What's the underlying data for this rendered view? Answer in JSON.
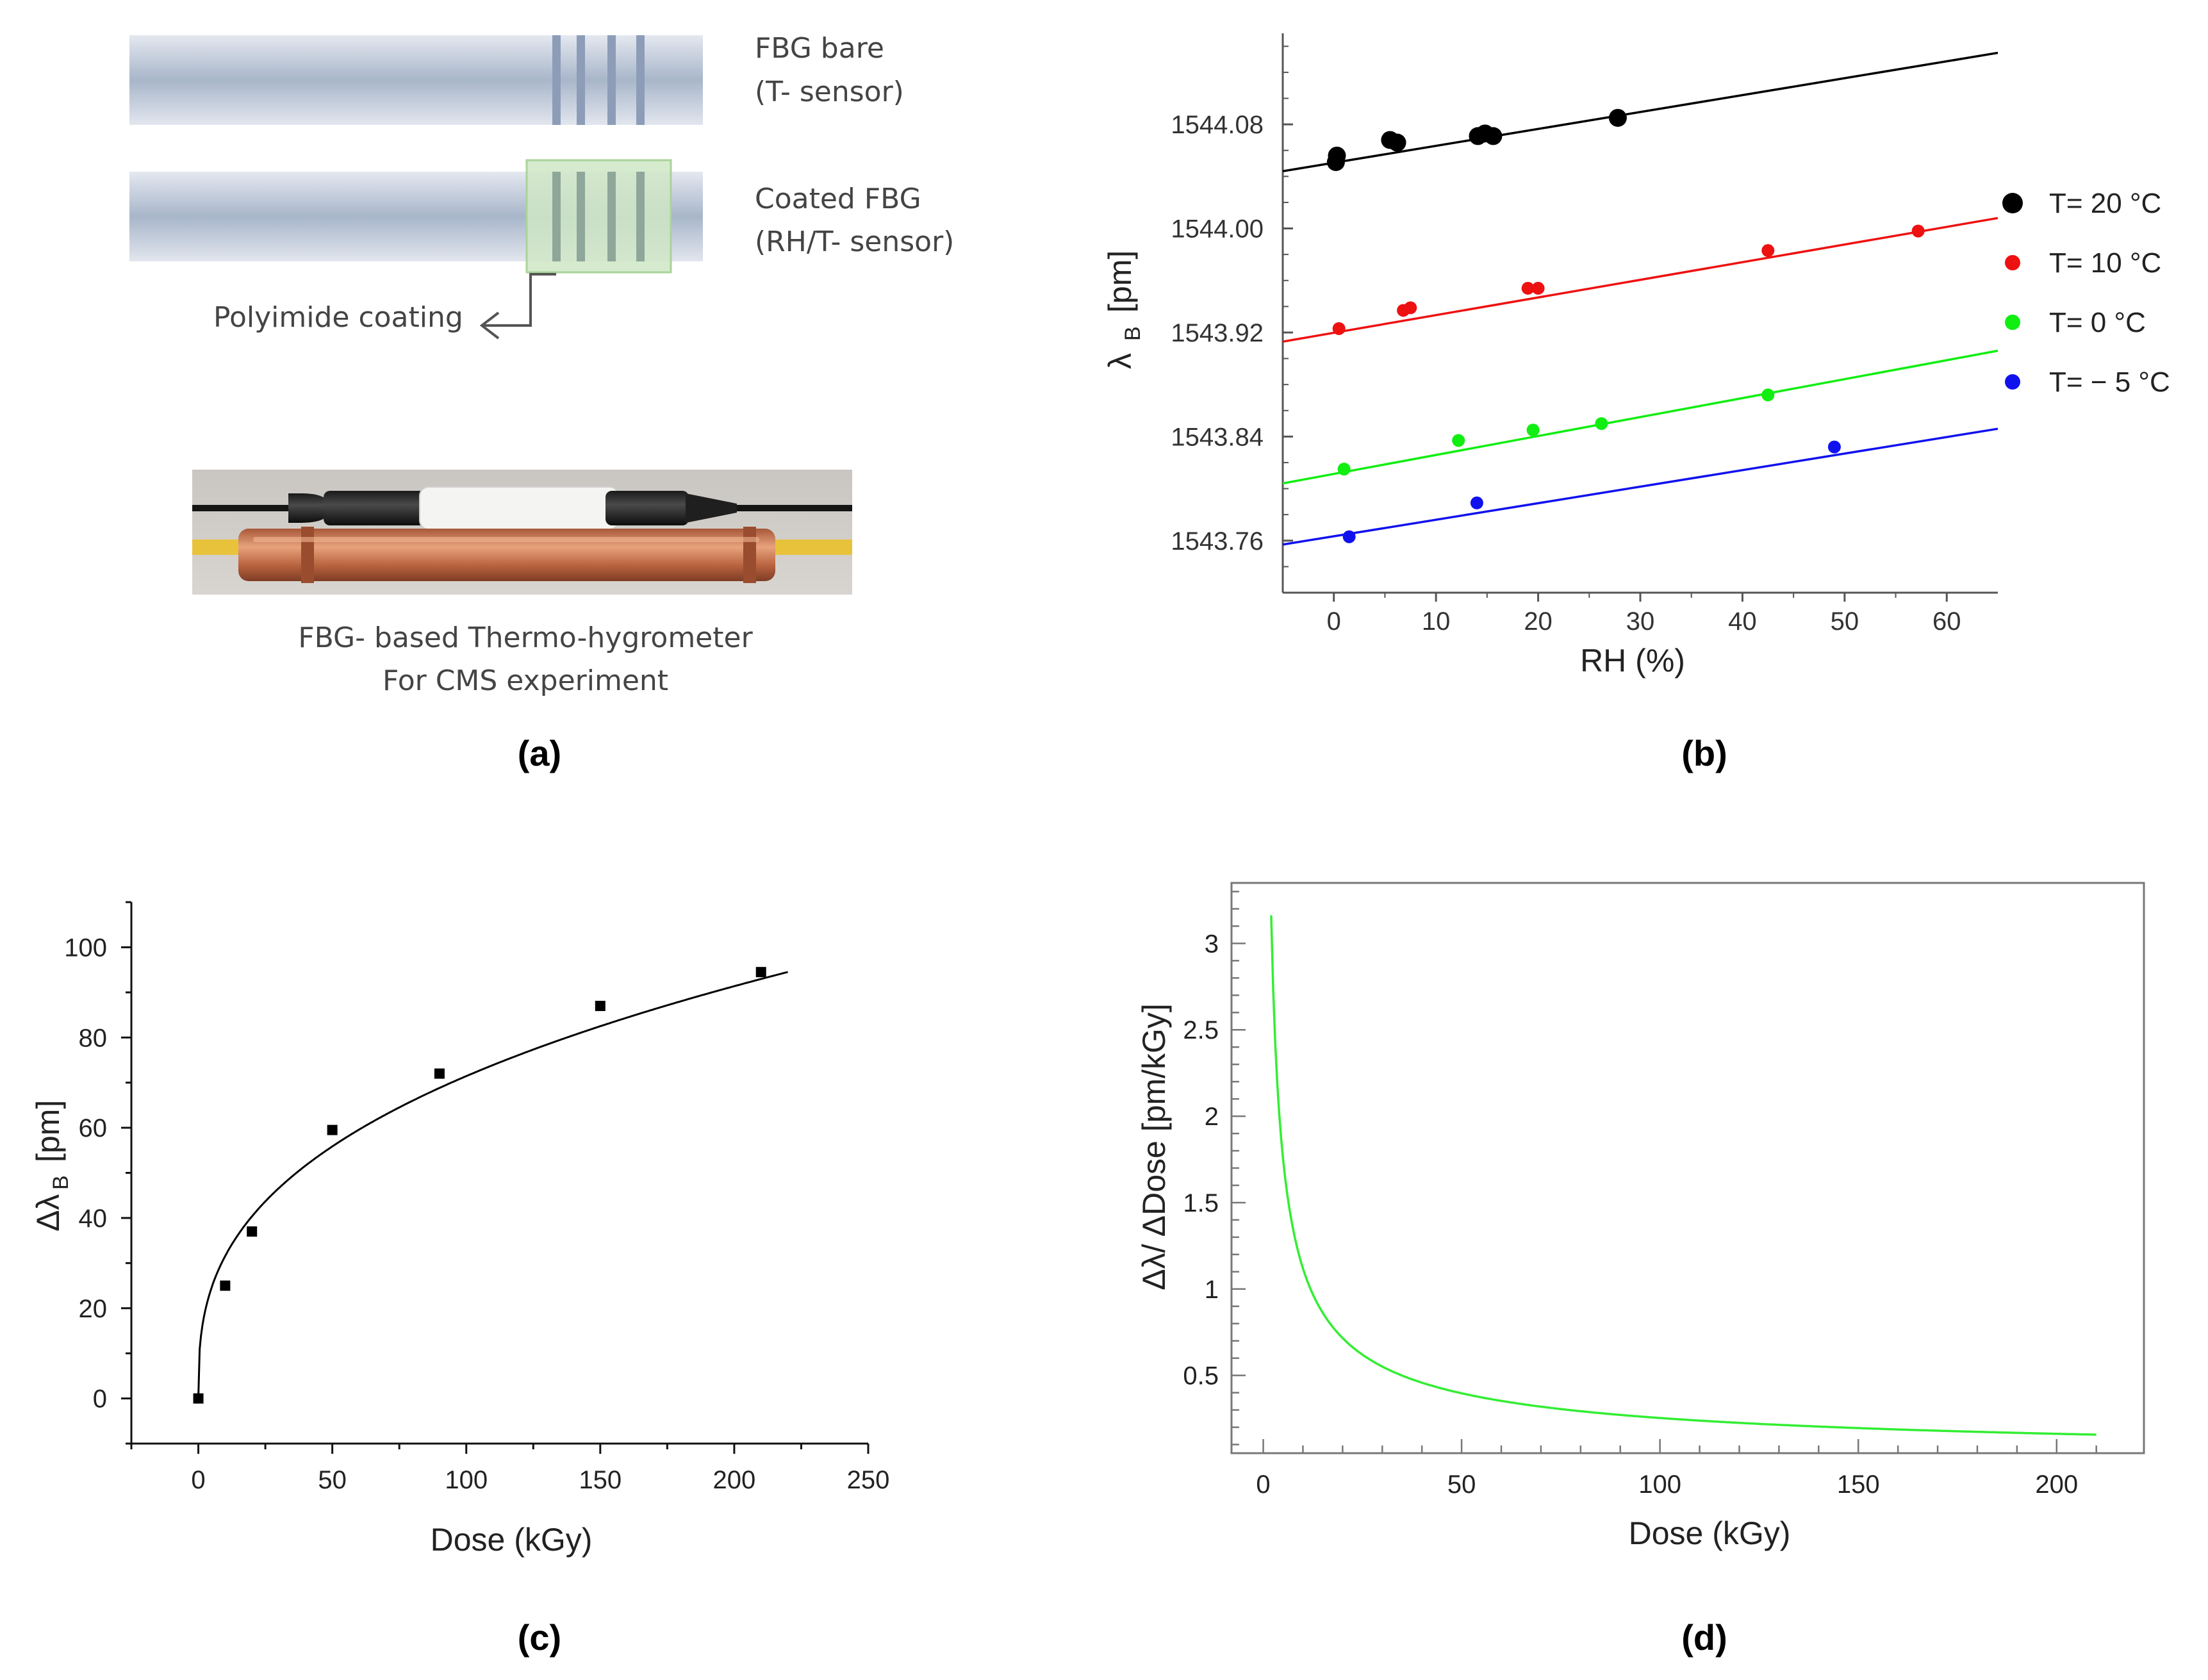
{
  "panel_a": {
    "bare_label_1": "FBG bare",
    "bare_label_2": "(T- sensor)",
    "coated_label_1": "Coated FBG",
    "coated_label_2": "(RH/T- sensor)",
    "coating_label": "Polyimide coating",
    "photo_caption_1": "FBG- based Thermo-hygrometer",
    "photo_caption_2": "For CMS experiment",
    "caption": "(a)"
  },
  "captions": {
    "b": "(b)",
    "c": "(c)",
    "d": "(d)"
  },
  "colors": {
    "t20": "#000000",
    "t10": "#ee1111",
    "t0": "#11ee11",
    "tm5": "#1111ee",
    "curve_c": "#000000",
    "curve_d": "#33ee33"
  },
  "chart_data": [
    {
      "id": "b",
      "type": "scatter",
      "title": "",
      "xlabel": "RH (%)",
      "ylabel_main": "λ",
      "ylabel_sub": "B",
      "ylabel_unit": "[pm]",
      "xlim": [
        -5,
        65
      ],
      "ylim": [
        1543.72,
        1544.15
      ],
      "xticks": [
        0,
        10,
        20,
        30,
        40,
        50,
        60
      ],
      "yticks": [
        1543.76,
        1543.84,
        1543.92,
        1544.0,
        1544.08
      ],
      "ytick_labels": [
        "1543.76",
        "1543.84",
        "1543.92",
        "1544.00",
        "1544.08"
      ],
      "legend_position": "right",
      "series": [
        {
          "name": "T= 20 °C",
          "key": "t20",
          "marker": "large",
          "x": [
            0.2,
            0.3,
            5.5,
            6.2,
            14.1,
            14.8,
            15.6,
            27.8
          ],
          "y": [
            1544.051,
            1544.056,
            1544.068,
            1544.066,
            1544.071,
            1544.073,
            1544.071,
            1544.085
          ],
          "fit": [
            [
              -5,
              1544.044
            ],
            [
              65,
              1544.135
            ]
          ]
        },
        {
          "name": "T= 10 °C",
          "key": "t10",
          "marker": "small",
          "x": [
            0.5,
            6.8,
            7.5,
            19.0,
            20.0,
            42.5,
            57.2
          ],
          "y": [
            1543.923,
            1543.937,
            1543.939,
            1543.954,
            1543.954,
            1543.983,
            1543.998
          ],
          "fit": [
            [
              -5,
              1543.913
            ],
            [
              65,
              1544.008
            ]
          ]
        },
        {
          "name": "T=   0 °C",
          "key": "t0",
          "marker": "small",
          "x": [
            1.0,
            12.2,
            19.5,
            26.2,
            42.5
          ],
          "y": [
            1543.815,
            1543.837,
            1543.845,
            1543.85,
            1543.872
          ],
          "fit": [
            [
              -5,
              1543.804
            ],
            [
              65,
              1543.906
            ]
          ]
        },
        {
          "name": "T= − 5 °C",
          "key": "tm5",
          "marker": "small",
          "x": [
            1.5,
            14.0,
            49.0
          ],
          "y": [
            1543.763,
            1543.789,
            1543.832
          ],
          "fit": [
            [
              -5,
              1543.757
            ],
            [
              65,
              1543.846
            ]
          ]
        }
      ]
    },
    {
      "id": "c",
      "type": "scatter",
      "title": "",
      "xlabel": "Dose (kGy)",
      "ylabel_main": "Δλ",
      "ylabel_sub": "B",
      "ylabel_unit": "[pm]",
      "xlim": [
        -25,
        250
      ],
      "ylim": [
        -10,
        110
      ],
      "xticks": [
        0,
        50,
        100,
        150,
        200,
        250
      ],
      "yticks": [
        0,
        20,
        40,
        60,
        80,
        100
      ],
      "x": [
        0,
        10,
        20,
        50,
        90,
        150,
        210
      ],
      "y": [
        0,
        25,
        37,
        59.5,
        72,
        87,
        94.5
      ],
      "fit": {
        "formula": "y = 13.93 * x^0.355",
        "x_range": [
          0,
          220
        ]
      }
    },
    {
      "id": "d",
      "type": "line",
      "title": "",
      "xlabel": "Dose (kGy)",
      "ylabel": "Δλ/ ΔDose [pm/kGy]",
      "xlim": [
        -8,
        222
      ],
      "ylim": [
        0.05,
        3.35
      ],
      "xticks": [
        0,
        50,
        100,
        150,
        200
      ],
      "yticks": [
        0.5,
        1,
        1.5,
        2,
        2.5,
        3
      ],
      "ytick_labels": [
        "0.5",
        "1",
        "1.5",
        "2",
        "2.5",
        "3"
      ],
      "curve": {
        "formula": "y = 4.945 * x^-0.645",
        "x_range": [
          2,
          210
        ]
      }
    }
  ]
}
